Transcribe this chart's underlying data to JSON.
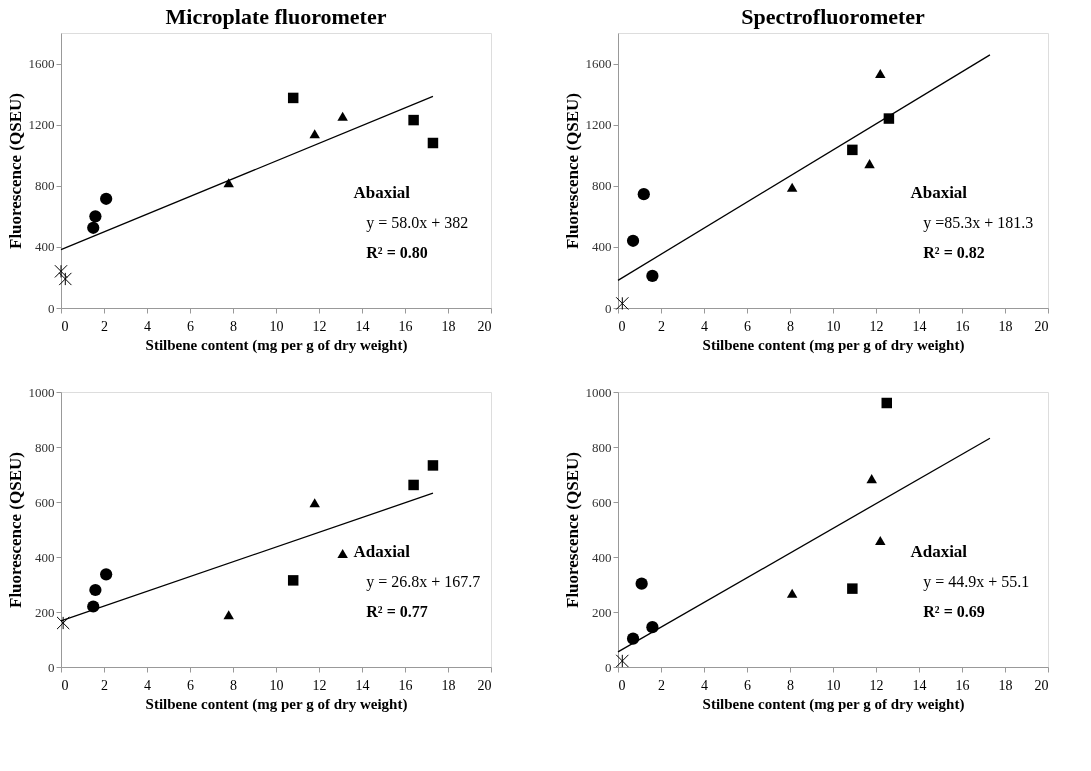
{
  "chart_data": [
    {
      "type": "scatter",
      "title": "Microplate fluorometer",
      "xlabel": "Stilbene content (mg per g of dry weight)",
      "ylabel": "Fluorescence (QSEU)",
      "xlim": [
        0,
        20
      ],
      "xticks": [
        0,
        2,
        4,
        6,
        8,
        10,
        12,
        14,
        16,
        18,
        20
      ],
      "ylim": [
        0,
        1800
      ],
      "yticks": [
        0,
        400,
        800,
        1200,
        1600
      ],
      "grid": false,
      "annotations": [
        "Abaxial",
        "y = 58.0x + 382",
        "R² = 0.80"
      ],
      "series": [
        {
          "marker": "circle",
          "color": "#000000",
          "x": [
            1.5,
            1.6,
            2.1
          ],
          "values": [
            525,
            600,
            715
          ]
        },
        {
          "marker": "triangle",
          "color": "#000000",
          "x": [
            7.8,
            11.8,
            13.1
          ],
          "values": [
            820,
            1140,
            1255
          ]
        },
        {
          "marker": "square",
          "color": "#000000",
          "x": [
            10.8,
            16.4,
            17.3
          ],
          "values": [
            1375,
            1230,
            1080
          ]
        },
        {
          "marker": "cross",
          "color": "#000000",
          "x": [
            0,
            0.2
          ],
          "values": [
            240,
            190
          ]
        },
        {
          "type": "line",
          "color": "#000000",
          "x": [
            0,
            17.3
          ],
          "values": [
            382,
            1385
          ]
        }
      ]
    },
    {
      "type": "scatter",
      "title": "Spectrofluorometer",
      "xlabel": "Stilbene content (mg per g of dry weight)",
      "ylabel": "Fluorescence (QSEU)",
      "xlim": [
        0,
        20
      ],
      "xticks": [
        0,
        2,
        4,
        6,
        8,
        10,
        12,
        14,
        16,
        18,
        20
      ],
      "ylim": [
        0,
        1800
      ],
      "yticks": [
        0,
        400,
        800,
        1200,
        1600
      ],
      "grid": false,
      "annotations": [
        "Abaxial",
        "y =85.3x + 181.3",
        "R² = 0.82"
      ],
      "series": [
        {
          "marker": "circle",
          "color": "#000000",
          "x": [
            0.7,
            1.2,
            1.6
          ],
          "values": [
            440,
            745,
            210
          ]
        },
        {
          "marker": "triangle",
          "color": "#000000",
          "x": [
            8.1,
            11.7,
            12.2
          ],
          "values": [
            790,
            945,
            1535
          ]
        },
        {
          "marker": "square",
          "color": "#000000",
          "x": [
            10.9,
            12.6
          ],
          "values": [
            1035,
            1240
          ]
        },
        {
          "marker": "cross",
          "color": "#000000",
          "x": [
            0.2
          ],
          "values": [
            30
          ]
        },
        {
          "type": "line",
          "color": "#000000",
          "x": [
            0,
            17.3
          ],
          "values": [
            181,
            1657
          ]
        }
      ]
    },
    {
      "type": "scatter",
      "xlabel": "Stilbene content (mg per g of dry weight)",
      "ylabel": "Fluorescence (QSEU)",
      "xlim": [
        0,
        20
      ],
      "xticks": [
        0,
        2,
        4,
        6,
        8,
        10,
        12,
        14,
        16,
        18,
        20
      ],
      "ylim": [
        0,
        1000
      ],
      "yticks": [
        0,
        200,
        400,
        600,
        800,
        1000
      ],
      "grid": false,
      "annotations": [
        "Adaxial",
        "y = 26.8x + 167.7",
        "R² = 0.77"
      ],
      "series": [
        {
          "marker": "circle",
          "color": "#000000",
          "x": [
            1.5,
            1.6,
            2.1
          ],
          "values": [
            220,
            280,
            337
          ]
        },
        {
          "marker": "triangle",
          "color": "#000000",
          "x": [
            7.8,
            11.8,
            13.1
          ],
          "values": [
            190,
            597,
            413
          ]
        },
        {
          "marker": "square",
          "color": "#000000",
          "x": [
            10.8,
            16.4,
            17.3
          ],
          "values": [
            315,
            662,
            733
          ]
        },
        {
          "marker": "cross",
          "color": "#000000",
          "x": [
            0.1
          ],
          "values": [
            160
          ]
        },
        {
          "type": "line",
          "color": "#000000",
          "x": [
            0,
            17.3
          ],
          "values": [
            168,
            632
          ]
        }
      ]
    },
    {
      "type": "scatter",
      "xlabel": "Stilbene content (mg per g of dry weight)",
      "ylabel": "Fluorescence (QSEU)",
      "xlim": [
        0,
        20
      ],
      "xticks": [
        0,
        2,
        4,
        6,
        8,
        10,
        12,
        14,
        16,
        18,
        20
      ],
      "ylim": [
        0,
        1000
      ],
      "yticks": [
        0,
        200,
        400,
        600,
        800,
        1000
      ],
      "grid": false,
      "annotations": [
        "Adaxial",
        "y = 44.9x + 55.1",
        "R² = 0.69"
      ],
      "series": [
        {
          "marker": "circle",
          "color": "#000000",
          "x": [
            0.7,
            1.1,
            1.6
          ],
          "values": [
            103,
            303,
            145
          ]
        },
        {
          "marker": "triangle",
          "color": "#000000",
          "x": [
            8.1,
            11.8,
            12.2
          ],
          "values": [
            268,
            685,
            460
          ]
        },
        {
          "marker": "square",
          "color": "#000000",
          "x": [
            10.9,
            12.5
          ],
          "values": [
            285,
            960
          ]
        },
        {
          "marker": "cross",
          "color": "#000000",
          "x": [
            0.2
          ],
          "values": [
            22
          ]
        },
        {
          "type": "line",
          "color": "#000000",
          "x": [
            0,
            17.3
          ],
          "values": [
            55,
            832
          ]
        }
      ]
    }
  ]
}
